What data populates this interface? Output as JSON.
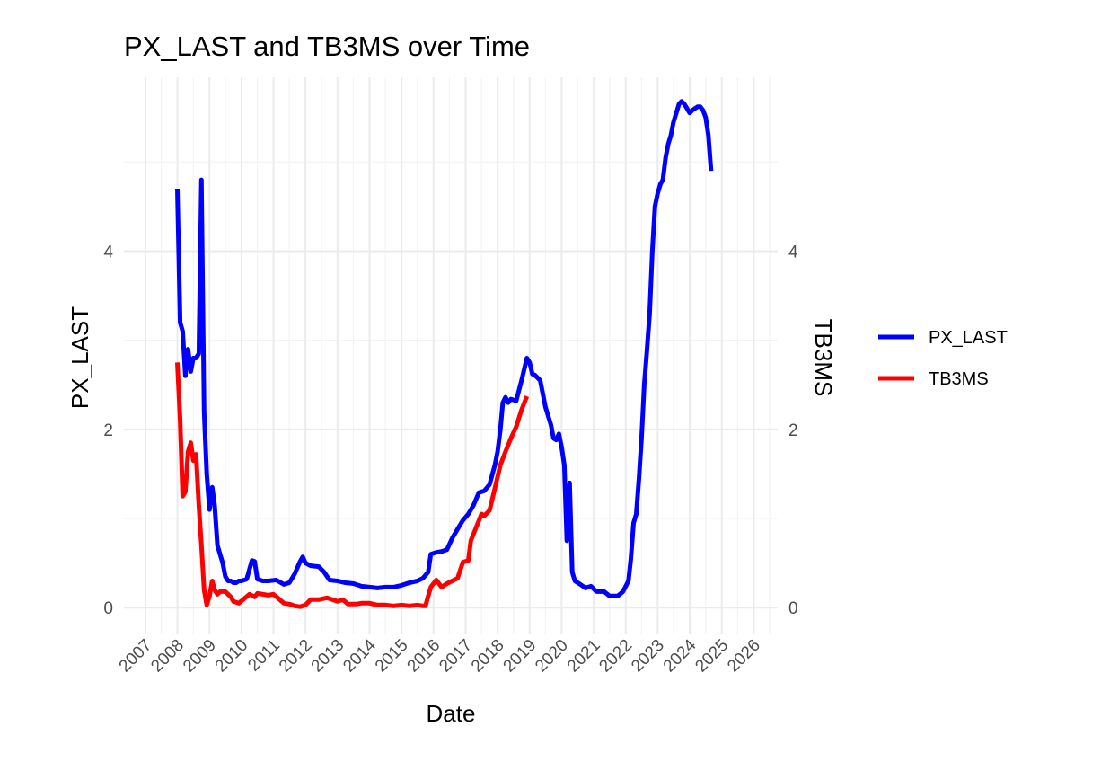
{
  "chart_data": {
    "type": "line",
    "title": "PX_LAST and TB3MS over Time",
    "xlabel": "Date",
    "ylabel": "PX_LAST",
    "y2label": "TB3MS",
    "x_ticks": [
      "2007",
      "2008",
      "2009",
      "2010",
      "2011",
      "2012",
      "2013",
      "2014",
      "2015",
      "2016",
      "2017",
      "2018",
      "2019",
      "2020",
      "2021",
      "2022",
      "2023",
      "2024",
      "2025",
      "2026"
    ],
    "y_ticks": [
      "0",
      "2",
      "4"
    ],
    "y2_ticks": [
      "0",
      "2",
      "4"
    ],
    "xlim": [
      "2006-05-01",
      "2026-10-01"
    ],
    "ylim": [
      -0.3,
      5.95
    ],
    "grid": true,
    "legend_position": "right",
    "series": [
      {
        "name": "PX_LAST",
        "color": "#0000FF",
        "points": [
          [
            "2008-01-01",
            4.7
          ],
          [
            "2008-02-01",
            3.2
          ],
          [
            "2008-03-01",
            3.1
          ],
          [
            "2008-04-01",
            2.6
          ],
          [
            "2008-05-01",
            2.9
          ],
          [
            "2008-06-01",
            2.65
          ],
          [
            "2008-07-01",
            2.8
          ],
          [
            "2008-08-01",
            2.8
          ],
          [
            "2008-09-01",
            2.85
          ],
          [
            "2008-10-01",
            4.8
          ],
          [
            "2008-11-01",
            2.2
          ],
          [
            "2008-12-01",
            1.5
          ],
          [
            "2009-01-01",
            1.1
          ],
          [
            "2009-02-01",
            1.35
          ],
          [
            "2009-03-01",
            1.15
          ],
          [
            "2009-04-01",
            0.7
          ],
          [
            "2009-05-01",
            0.6
          ],
          [
            "2009-06-01",
            0.5
          ],
          [
            "2009-07-01",
            0.35
          ],
          [
            "2009-08-01",
            0.3
          ],
          [
            "2009-09-01",
            0.3
          ],
          [
            "2009-10-01",
            0.28
          ],
          [
            "2009-11-01",
            0.28
          ],
          [
            "2009-12-01",
            0.3
          ],
          [
            "2010-01-01",
            0.3
          ],
          [
            "2010-03-01",
            0.32
          ],
          [
            "2010-05-01",
            0.53
          ],
          [
            "2010-06-01",
            0.52
          ],
          [
            "2010-07-01",
            0.32
          ],
          [
            "2010-09-01",
            0.3
          ],
          [
            "2010-11-01",
            0.3
          ],
          [
            "2011-02-01",
            0.31
          ],
          [
            "2011-05-01",
            0.26
          ],
          [
            "2011-07-01",
            0.28
          ],
          [
            "2011-09-01",
            0.38
          ],
          [
            "2011-11-01",
            0.52
          ],
          [
            "2011-12-01",
            0.57
          ],
          [
            "2012-01-01",
            0.5
          ],
          [
            "2012-03-01",
            0.47
          ],
          [
            "2012-06-01",
            0.46
          ],
          [
            "2012-08-01",
            0.4
          ],
          [
            "2012-10-01",
            0.31
          ],
          [
            "2013-01-01",
            0.3
          ],
          [
            "2013-04-01",
            0.28
          ],
          [
            "2013-07-01",
            0.27
          ],
          [
            "2013-10-01",
            0.24
          ],
          [
            "2014-01-01",
            0.23
          ],
          [
            "2014-04-01",
            0.22
          ],
          [
            "2014-07-01",
            0.23
          ],
          [
            "2014-10-01",
            0.23
          ],
          [
            "2015-01-01",
            0.25
          ],
          [
            "2015-04-01",
            0.28
          ],
          [
            "2015-07-01",
            0.3
          ],
          [
            "2015-09-01",
            0.33
          ],
          [
            "2015-11-01",
            0.4
          ],
          [
            "2015-12-01",
            0.6
          ],
          [
            "2016-02-01",
            0.62
          ],
          [
            "2016-04-01",
            0.63
          ],
          [
            "2016-06-01",
            0.65
          ],
          [
            "2016-08-01",
            0.78
          ],
          [
            "2016-10-01",
            0.88
          ],
          [
            "2016-12-01",
            0.98
          ],
          [
            "2017-02-01",
            1.05
          ],
          [
            "2017-04-01",
            1.15
          ],
          [
            "2017-06-01",
            1.29
          ],
          [
            "2017-08-01",
            1.31
          ],
          [
            "2017-10-01",
            1.38
          ],
          [
            "2017-12-01",
            1.6
          ],
          [
            "2018-01-01",
            1.75
          ],
          [
            "2018-02-01",
            2.0
          ],
          [
            "2018-03-01",
            2.3
          ],
          [
            "2018-04-01",
            2.36
          ],
          [
            "2018-05-01",
            2.3
          ],
          [
            "2018-06-01",
            2.34
          ],
          [
            "2018-08-01",
            2.32
          ],
          [
            "2018-10-01",
            2.55
          ],
          [
            "2018-12-01",
            2.8
          ],
          [
            "2019-01-01",
            2.75
          ],
          [
            "2019-02-01",
            2.62
          ],
          [
            "2019-03-01",
            2.61
          ],
          [
            "2019-05-01",
            2.55
          ],
          [
            "2019-07-01",
            2.25
          ],
          [
            "2019-09-01",
            2.05
          ],
          [
            "2019-10-01",
            1.9
          ],
          [
            "2019-11-01",
            1.88
          ],
          [
            "2019-12-01",
            1.95
          ],
          [
            "2020-01-01",
            1.8
          ],
          [
            "2020-02-01",
            1.6
          ],
          [
            "2020-03-01",
            0.75
          ],
          [
            "2020-04-01",
            1.4
          ],
          [
            "2020-05-01",
            0.4
          ],
          [
            "2020-06-01",
            0.3
          ],
          [
            "2020-08-01",
            0.26
          ],
          [
            "2020-10-01",
            0.22
          ],
          [
            "2020-12-01",
            0.24
          ],
          [
            "2021-02-01",
            0.18
          ],
          [
            "2021-05-01",
            0.18
          ],
          [
            "2021-07-01",
            0.13
          ],
          [
            "2021-10-01",
            0.13
          ],
          [
            "2021-12-01",
            0.18
          ],
          [
            "2022-02-01",
            0.3
          ],
          [
            "2022-03-01",
            0.55
          ],
          [
            "2022-04-01",
            0.95
          ],
          [
            "2022-05-01",
            1.05
          ],
          [
            "2022-06-01",
            1.45
          ],
          [
            "2022-07-01",
            1.9
          ],
          [
            "2022-08-01",
            2.5
          ],
          [
            "2022-09-01",
            2.9
          ],
          [
            "2022-10-01",
            3.3
          ],
          [
            "2022-11-01",
            4.0
          ],
          [
            "2022-12-01",
            4.5
          ],
          [
            "2023-01-01",
            4.65
          ],
          [
            "2023-02-01",
            4.75
          ],
          [
            "2023-03-01",
            4.8
          ],
          [
            "2023-04-01",
            5.05
          ],
          [
            "2023-05-01",
            5.2
          ],
          [
            "2023-06-01",
            5.3
          ],
          [
            "2023-07-01",
            5.45
          ],
          [
            "2023-08-01",
            5.55
          ],
          [
            "2023-09-01",
            5.65
          ],
          [
            "2023-10-01",
            5.68
          ],
          [
            "2023-11-01",
            5.65
          ],
          [
            "2023-12-01",
            5.6
          ],
          [
            "2024-01-01",
            5.55
          ],
          [
            "2024-02-01",
            5.58
          ],
          [
            "2024-03-01",
            5.6
          ],
          [
            "2024-04-01",
            5.62
          ],
          [
            "2024-05-01",
            5.62
          ],
          [
            "2024-06-01",
            5.58
          ],
          [
            "2024-07-01",
            5.5
          ],
          [
            "2024-08-01",
            5.3
          ],
          [
            "2024-09-01",
            4.9
          ]
        ]
      },
      {
        "name": "TB3MS",
        "color": "#FF0000",
        "points": [
          [
            "2008-01-01",
            2.75
          ],
          [
            "2008-02-01",
            2.1
          ],
          [
            "2008-03-01",
            1.25
          ],
          [
            "2008-04-01",
            1.3
          ],
          [
            "2008-05-01",
            1.75
          ],
          [
            "2008-06-01",
            1.85
          ],
          [
            "2008-07-01",
            1.65
          ],
          [
            "2008-08-01",
            1.72
          ],
          [
            "2008-09-01",
            1.15
          ],
          [
            "2008-10-01",
            0.7
          ],
          [
            "2008-11-01",
            0.2
          ],
          [
            "2008-12-01",
            0.03
          ],
          [
            "2009-01-01",
            0.13
          ],
          [
            "2009-02-01",
            0.3
          ],
          [
            "2009-03-01",
            0.2
          ],
          [
            "2009-04-01",
            0.15
          ],
          [
            "2009-05-01",
            0.18
          ],
          [
            "2009-07-01",
            0.18
          ],
          [
            "2009-09-01",
            0.12
          ],
          [
            "2009-10-01",
            0.07
          ],
          [
            "2009-12-01",
            0.05
          ],
          [
            "2010-02-01",
            0.1
          ],
          [
            "2010-04-01",
            0.15
          ],
          [
            "2010-06-01",
            0.12
          ],
          [
            "2010-07-01",
            0.16
          ],
          [
            "2010-09-01",
            0.15
          ],
          [
            "2010-11-01",
            0.14
          ],
          [
            "2011-01-01",
            0.15
          ],
          [
            "2011-03-01",
            0.1
          ],
          [
            "2011-05-01",
            0.05
          ],
          [
            "2011-07-01",
            0.04
          ],
          [
            "2011-09-01",
            0.02
          ],
          [
            "2011-11-01",
            0.01
          ],
          [
            "2012-01-01",
            0.03
          ],
          [
            "2012-03-01",
            0.09
          ],
          [
            "2012-06-01",
            0.09
          ],
          [
            "2012-09-01",
            0.11
          ],
          [
            "2012-11-01",
            0.09
          ],
          [
            "2013-01-01",
            0.07
          ],
          [
            "2013-03-01",
            0.09
          ],
          [
            "2013-05-01",
            0.04
          ],
          [
            "2013-08-01",
            0.04
          ],
          [
            "2013-10-01",
            0.05
          ],
          [
            "2014-01-01",
            0.05
          ],
          [
            "2014-04-01",
            0.03
          ],
          [
            "2014-07-01",
            0.03
          ],
          [
            "2014-10-01",
            0.02
          ],
          [
            "2015-01-01",
            0.03
          ],
          [
            "2015-04-01",
            0.02
          ],
          [
            "2015-07-01",
            0.03
          ],
          [
            "2015-09-01",
            0.02
          ],
          [
            "2015-10-01",
            0.02
          ],
          [
            "2015-11-01",
            0.13
          ],
          [
            "2015-12-01",
            0.23
          ],
          [
            "2016-02-01",
            0.31
          ],
          [
            "2016-04-01",
            0.23
          ],
          [
            "2016-06-01",
            0.27
          ],
          [
            "2016-08-01",
            0.3
          ],
          [
            "2016-10-01",
            0.33
          ],
          [
            "2016-12-01",
            0.51
          ],
          [
            "2017-02-01",
            0.53
          ],
          [
            "2017-03-01",
            0.75
          ],
          [
            "2017-05-01",
            0.9
          ],
          [
            "2017-07-01",
            1.05
          ],
          [
            "2017-08-01",
            1.03
          ],
          [
            "2017-10-01",
            1.09
          ],
          [
            "2017-12-01",
            1.34
          ],
          [
            "2018-02-01",
            1.6
          ],
          [
            "2018-04-01",
            1.75
          ],
          [
            "2018-06-01",
            1.9
          ],
          [
            "2018-08-01",
            2.03
          ],
          [
            "2018-10-01",
            2.22
          ],
          [
            "2018-12-01",
            2.37
          ]
        ]
      }
    ]
  }
}
